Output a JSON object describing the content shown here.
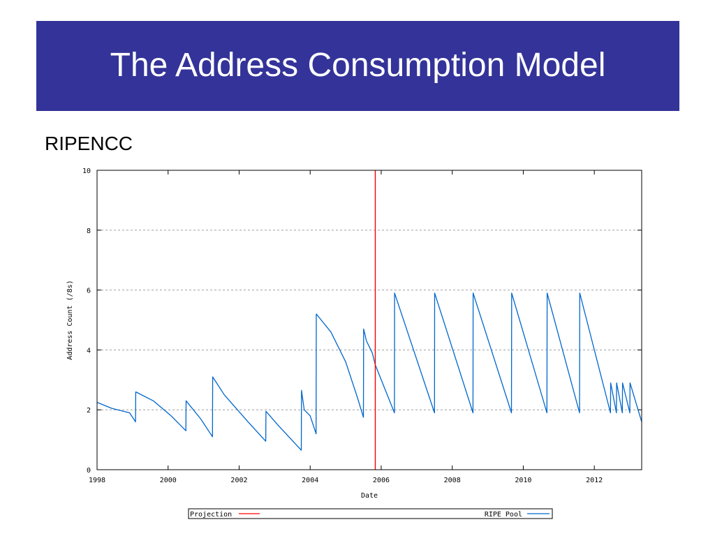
{
  "slide": {
    "title": "The Address Consumption Model",
    "subtitle": "RIPENCC"
  },
  "colors": {
    "title_bar": "#333399",
    "projection": "#ff0000",
    "ripe_pool": "#0066cc"
  },
  "chart_data": {
    "type": "line",
    "title": "",
    "xlabel": "Date",
    "ylabel": "Address Count (/8s)",
    "xlim": [
      "1998-01-01",
      "2013-05-01"
    ],
    "ylim": [
      0,
      10
    ],
    "x_ticks": [
      "1998",
      "2000",
      "2002",
      "2004",
      "2006",
      "2008",
      "2010",
      "2012"
    ],
    "y_ticks": [
      "0",
      "2",
      "4",
      "6",
      "8",
      "10"
    ],
    "grid": "horizontal dashed",
    "legend": {
      "placement": "bottom",
      "entries": [
        "Projection",
        "RIPE Pool"
      ]
    },
    "series": [
      {
        "name": "RIPE Pool",
        "kind": "line",
        "points": [
          [
            "1998-01-01",
            2.25
          ],
          [
            "1998-06-01",
            2.05
          ],
          [
            "1998-12-01",
            1.9
          ],
          [
            "1999-02-01",
            1.6
          ],
          [
            "1999-02-03",
            2.6
          ],
          [
            "1999-08-01",
            2.3
          ],
          [
            "2000-02-01",
            1.8
          ],
          [
            "2000-07-01",
            1.3
          ],
          [
            "2000-07-03",
            2.3
          ],
          [
            "2000-12-01",
            1.7
          ],
          [
            "2001-04-01",
            1.1
          ],
          [
            "2001-04-03",
            3.1
          ],
          [
            "2001-08-01",
            2.5
          ],
          [
            "2002-04-01",
            1.6
          ],
          [
            "2002-10-01",
            0.95
          ],
          [
            "2002-10-03",
            1.95
          ],
          [
            "2003-02-01",
            1.5
          ],
          [
            "2003-10-01",
            0.65
          ],
          [
            "2003-10-03",
            2.65
          ],
          [
            "2003-11-01",
            2.0
          ],
          [
            "2004-01-01",
            1.8
          ],
          [
            "2004-03-01",
            1.2
          ],
          [
            "2004-03-03",
            5.2
          ],
          [
            "2004-08-01",
            4.6
          ],
          [
            "2005-01-01",
            3.6
          ],
          [
            "2005-05-01",
            2.4
          ],
          [
            "2005-07-01",
            1.75
          ],
          [
            "2005-07-03",
            4.7
          ],
          [
            "2005-08-01",
            4.3
          ],
          [
            "2005-10-01",
            3.9
          ],
          [
            "2005-11-01",
            3.5
          ],
          [
            "2006-05-15",
            1.9
          ],
          [
            "2006-05-17",
            5.9
          ],
          [
            "2007-07-01",
            1.9
          ],
          [
            "2007-07-03",
            5.9
          ],
          [
            "2008-08-01",
            1.9
          ],
          [
            "2008-08-03",
            5.9
          ],
          [
            "2009-09-01",
            1.9
          ],
          [
            "2009-09-03",
            5.9
          ],
          [
            "2010-09-01",
            1.9
          ],
          [
            "2010-09-03",
            5.9
          ],
          [
            "2011-08-01",
            1.9
          ],
          [
            "2011-08-03",
            5.9
          ],
          [
            "2012-06-15",
            1.9
          ],
          [
            "2012-06-17",
            2.9
          ],
          [
            "2012-08-15",
            1.9
          ],
          [
            "2012-08-17",
            2.9
          ],
          [
            "2012-10-15",
            1.9
          ],
          [
            "2012-10-17",
            2.9
          ],
          [
            "2013-01-01",
            1.9
          ],
          [
            "2013-01-03",
            2.9
          ],
          [
            "2013-05-01",
            1.6
          ]
        ]
      },
      {
        "name": "Projection",
        "kind": "vertical-line",
        "x": "2005-11-01"
      }
    ]
  }
}
